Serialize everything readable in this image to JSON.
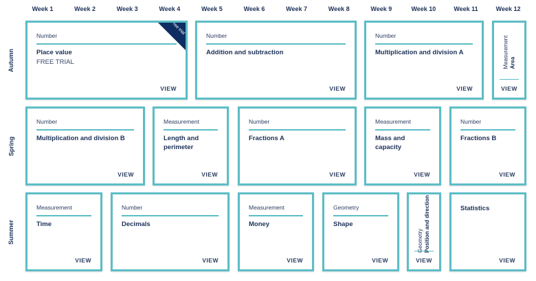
{
  "weeks": [
    "Week 1",
    "Week 2",
    "Week 3",
    "Week 4",
    "Week 5",
    "Week 6",
    "Week 7",
    "Week 8",
    "Week 9",
    "Week 10",
    "Week 11",
    "Week 12"
  ],
  "terms": [
    "Autumn",
    "Spring",
    "Summer"
  ],
  "colors": {
    "border": "#5cbdc6",
    "text": "#1d3158",
    "ribbon": "#0d2d63"
  },
  "view_label": "VIEW",
  "cards": [
    {
      "category": "Number",
      "title": "Place value",
      "subtitle": "FREE TRIAL",
      "ribbon": "Free trial"
    },
    {
      "category": "Number",
      "title": "Addition and subtraction"
    },
    {
      "category": "Number",
      "title": "Multiplication and division A"
    },
    {
      "category": "Measurement",
      "title": "Area"
    },
    {
      "category": "Number",
      "title": "Multiplication and division B"
    },
    {
      "category": "Measurement",
      "title": "Length and perimeter"
    },
    {
      "category": "Number",
      "title": "Fractions A"
    },
    {
      "category": "Measurement",
      "title": "Mass and capacity"
    },
    {
      "category": "Number",
      "title": "Fractions B"
    },
    {
      "category": "Measurement",
      "title": "Time"
    },
    {
      "category": "Number",
      "title": "Decimals"
    },
    {
      "category": "Measurement",
      "title": "Money"
    },
    {
      "category": "Geometry",
      "title": "Shape"
    },
    {
      "category": "Geometry",
      "title": "Position and direction"
    },
    {
      "category": "",
      "title": "Statistics"
    }
  ]
}
